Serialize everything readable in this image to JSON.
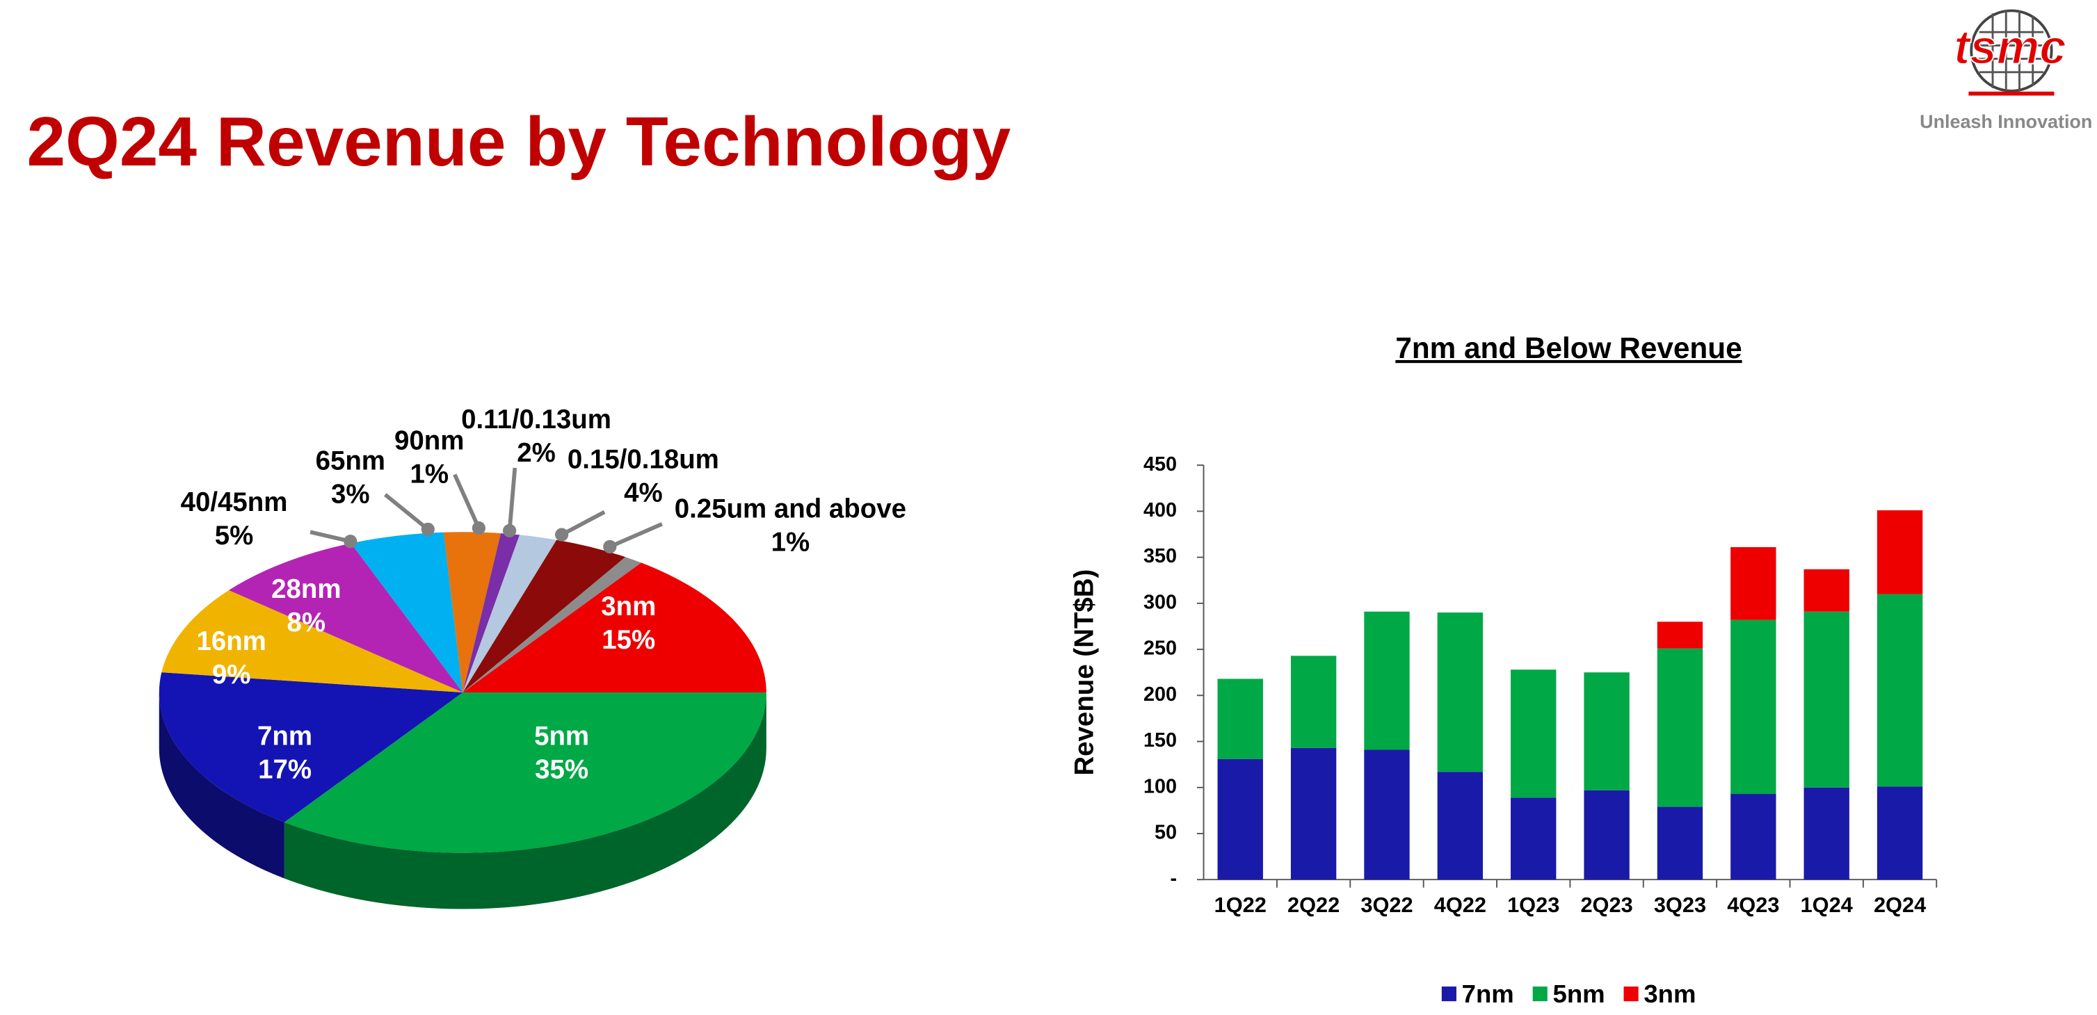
{
  "header": {
    "title": "2Q24 Revenue by Technology",
    "logo": "tsmc",
    "tagline": "Unleash Innovation"
  },
  "chart_data": [
    {
      "type": "pie",
      "categories": [
        "3nm",
        "5nm",
        "7nm",
        "16nm",
        "28nm",
        "40/45nm",
        "65nm",
        "90nm",
        "0.11/0.13um",
        "0.15/0.18um",
        "0.25um and above"
      ],
      "values": [
        15,
        35,
        17,
        9,
        8,
        5,
        3,
        1,
        2,
        4,
        1
      ],
      "value_labels": [
        "15%",
        "35%",
        "17%",
        "9%",
        "8%",
        "5%",
        "3%",
        "1%",
        "2%",
        "4%",
        "1%"
      ],
      "colors": [
        "#ee0000",
        "#00a846",
        "#1414b4",
        "#f0b400",
        "#b424b4",
        "#00b0f0",
        "#e8720c",
        "#7a2ea8",
        "#b4c8e0",
        "#8c0a0a",
        "#8c8c8c"
      ]
    },
    {
      "type": "bar",
      "stacked": true,
      "title": "7nm and Below Revenue",
      "ylabel": "Revenue (NT$B)",
      "categories": [
        "1Q22",
        "2Q22",
        "3Q22",
        "4Q22",
        "1Q23",
        "2Q23",
        "3Q23",
        "4Q23",
        "1Q24",
        "2Q24"
      ],
      "series": [
        {
          "name": "7nm",
          "color": "#1a1aa8",
          "values": [
            131,
            143,
            141,
            117,
            89,
            97,
            79,
            93,
            100,
            101
          ]
        },
        {
          "name": "5nm",
          "color": "#00a846",
          "values": [
            87,
            100,
            150,
            173,
            139,
            128,
            172,
            189,
            191,
            209
          ]
        },
        {
          "name": "3nm",
          "color": "#ee0000",
          "values": [
            0,
            0,
            0,
            0,
            0,
            0,
            29,
            79,
            46,
            91
          ]
        }
      ],
      "ylim": [
        0,
        450
      ],
      "yticks": [
        {
          "value": 0,
          "label": "-"
        },
        50,
        100,
        150,
        200,
        250,
        300,
        350,
        400,
        450
      ]
    }
  ]
}
